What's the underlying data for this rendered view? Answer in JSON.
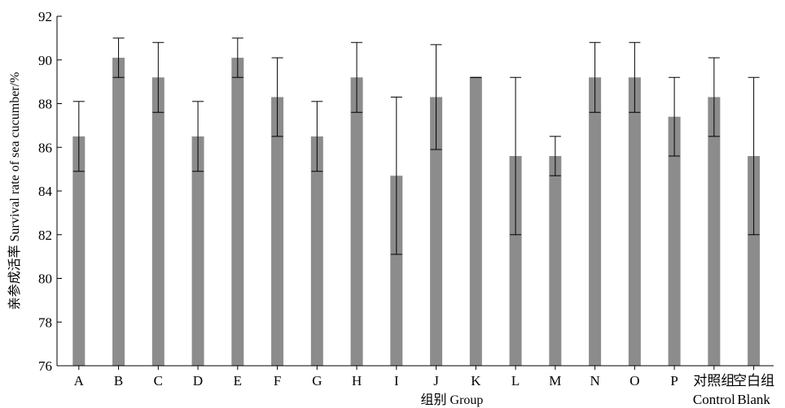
{
  "chart_data": {
    "type": "bar",
    "xlabel": "组别 Group",
    "ylabel": "亲参成活率 Survival rate of sea cucumber/%",
    "ylim": [
      76,
      92
    ],
    "yticks": [
      "76",
      "78",
      "80",
      "82",
      "84",
      "86",
      "88",
      "90",
      "92"
    ],
    "categories": [
      "A",
      "B",
      "C",
      "D",
      "E",
      "F",
      "G",
      "H",
      "I",
      "J",
      "K",
      "L",
      "M",
      "N",
      "O",
      "P",
      "对照组",
      "空白组"
    ],
    "category_sublabels": [
      "",
      "",
      "",
      "",
      "",
      "",
      "",
      "",
      "",
      "",
      "",
      "",
      "",
      "",
      "",
      "",
      "Control",
      "Blank"
    ],
    "values": [
      86.5,
      90.1,
      89.2,
      86.5,
      90.1,
      88.3,
      86.5,
      89.2,
      84.7,
      88.3,
      89.2,
      85.6,
      85.6,
      89.2,
      89.2,
      87.4,
      88.3,
      85.6
    ],
    "errors": [
      1.6,
      0.9,
      1.6,
      1.6,
      0.9,
      1.8,
      1.6,
      1.6,
      3.6,
      2.4,
      0,
      3.6,
      0.9,
      1.6,
      1.6,
      1.8,
      1.8,
      3.6
    ],
    "bar_color": "#8c8c8c",
    "grid": false,
    "legend": "none"
  }
}
